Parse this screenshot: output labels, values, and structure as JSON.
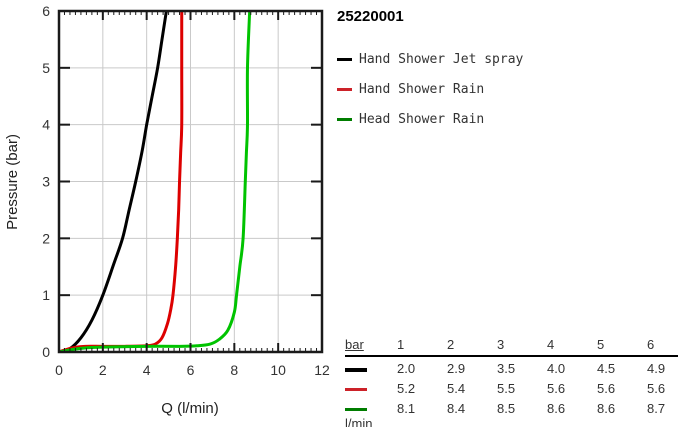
{
  "title": "25220001",
  "legend": {
    "items": [
      {
        "label": "Hand Shower Jet spray",
        "color": "#000000"
      },
      {
        "label": "Hand Shower Rain",
        "color": "#cc2229"
      },
      {
        "label": "Head Shower Rain",
        "color": "#007d00"
      }
    ]
  },
  "chart_data": {
    "type": "line",
    "title": "",
    "xlabel": "Q (l/min)",
    "ylabel": "Pressure (bar)",
    "xlim": [
      0,
      12
    ],
    "ylim": [
      0,
      6
    ],
    "x_major_ticks": [
      0,
      2,
      4,
      6,
      8,
      10,
      12
    ],
    "x_minor_step": 0.25,
    "y_major_ticks": [
      0,
      1,
      2,
      3,
      4,
      5,
      6
    ],
    "grid": true,
    "grid_color": "#c9c9c9",
    "legend_position": "right",
    "series": [
      {
        "name": "Hand Shower Jet spray",
        "color": "#000000",
        "flow_at_bar_1_to_6": [
          2.0,
          2.9,
          3.5,
          4.0,
          4.5,
          4.9
        ],
        "points": [
          [
            0,
            0
          ],
          [
            0.5,
            0.06
          ],
          [
            1.0,
            0.25
          ],
          [
            1.5,
            0.56
          ],
          [
            2.0,
            1.0
          ],
          [
            2.5,
            1.55
          ],
          [
            2.9,
            2.0
          ],
          [
            3.2,
            2.5
          ],
          [
            3.5,
            3.0
          ],
          [
            3.8,
            3.55
          ],
          [
            4.0,
            4.0
          ],
          [
            4.25,
            4.5
          ],
          [
            4.5,
            5.0
          ],
          [
            4.7,
            5.5
          ],
          [
            4.9,
            6.0
          ]
        ]
      },
      {
        "name": "Hand Shower Rain",
        "color": "#dd0000",
        "flow_at_bar_1_to_6": [
          5.2,
          5.4,
          5.5,
          5.6,
          5.6,
          5.6
        ],
        "points": [
          [
            0,
            0
          ],
          [
            0.3,
            0.04
          ],
          [
            0.7,
            0.08
          ],
          [
            1.2,
            0.1
          ],
          [
            2.0,
            0.1
          ],
          [
            3.0,
            0.1
          ],
          [
            4.0,
            0.11
          ],
          [
            4.4,
            0.14
          ],
          [
            4.7,
            0.25
          ],
          [
            4.95,
            0.5
          ],
          [
            5.1,
            0.75
          ],
          [
            5.2,
            1.0
          ],
          [
            5.32,
            1.5
          ],
          [
            5.4,
            2.0
          ],
          [
            5.46,
            2.5
          ],
          [
            5.5,
            3.0
          ],
          [
            5.55,
            3.5
          ],
          [
            5.6,
            4.0
          ],
          [
            5.6,
            5.0
          ],
          [
            5.6,
            6.0
          ]
        ]
      },
      {
        "name": "Head Shower Rain",
        "color": "#00c300",
        "flow_at_bar_1_to_6": [
          8.1,
          8.4,
          8.5,
          8.6,
          8.6,
          8.7
        ],
        "points": [
          [
            0,
            0
          ],
          [
            0.4,
            0.03
          ],
          [
            0.9,
            0.06
          ],
          [
            1.5,
            0.08
          ],
          [
            2.5,
            0.09
          ],
          [
            4.0,
            0.1
          ],
          [
            5.5,
            0.1
          ],
          [
            6.3,
            0.11
          ],
          [
            6.9,
            0.14
          ],
          [
            7.3,
            0.22
          ],
          [
            7.7,
            0.38
          ],
          [
            8.0,
            0.7
          ],
          [
            8.1,
            1.0
          ],
          [
            8.25,
            1.5
          ],
          [
            8.4,
            2.0
          ],
          [
            8.5,
            3.0
          ],
          [
            8.55,
            3.5
          ],
          [
            8.6,
            4.0
          ],
          [
            8.6,
            5.0
          ],
          [
            8.7,
            6.0
          ]
        ]
      }
    ]
  },
  "table": {
    "header_label": "bar",
    "pressure_columns": [
      "1",
      "2",
      "3",
      "4",
      "5",
      "6"
    ],
    "unit_label": "l/min",
    "rows": [
      {
        "swatch_color": "#000000",
        "swatch_height": 4,
        "values": [
          "2.0",
          "2.9",
          "3.5",
          "4.0",
          "4.5",
          "4.9"
        ]
      },
      {
        "swatch_color": "#cc2229",
        "swatch_height": 3,
        "values": [
          "5.2",
          "5.4",
          "5.5",
          "5.6",
          "5.6",
          "5.6"
        ]
      },
      {
        "swatch_color": "#007d00",
        "swatch_height": 3,
        "values": [
          "8.1",
          "8.4",
          "8.5",
          "8.6",
          "8.6",
          "8.7"
        ]
      }
    ]
  }
}
